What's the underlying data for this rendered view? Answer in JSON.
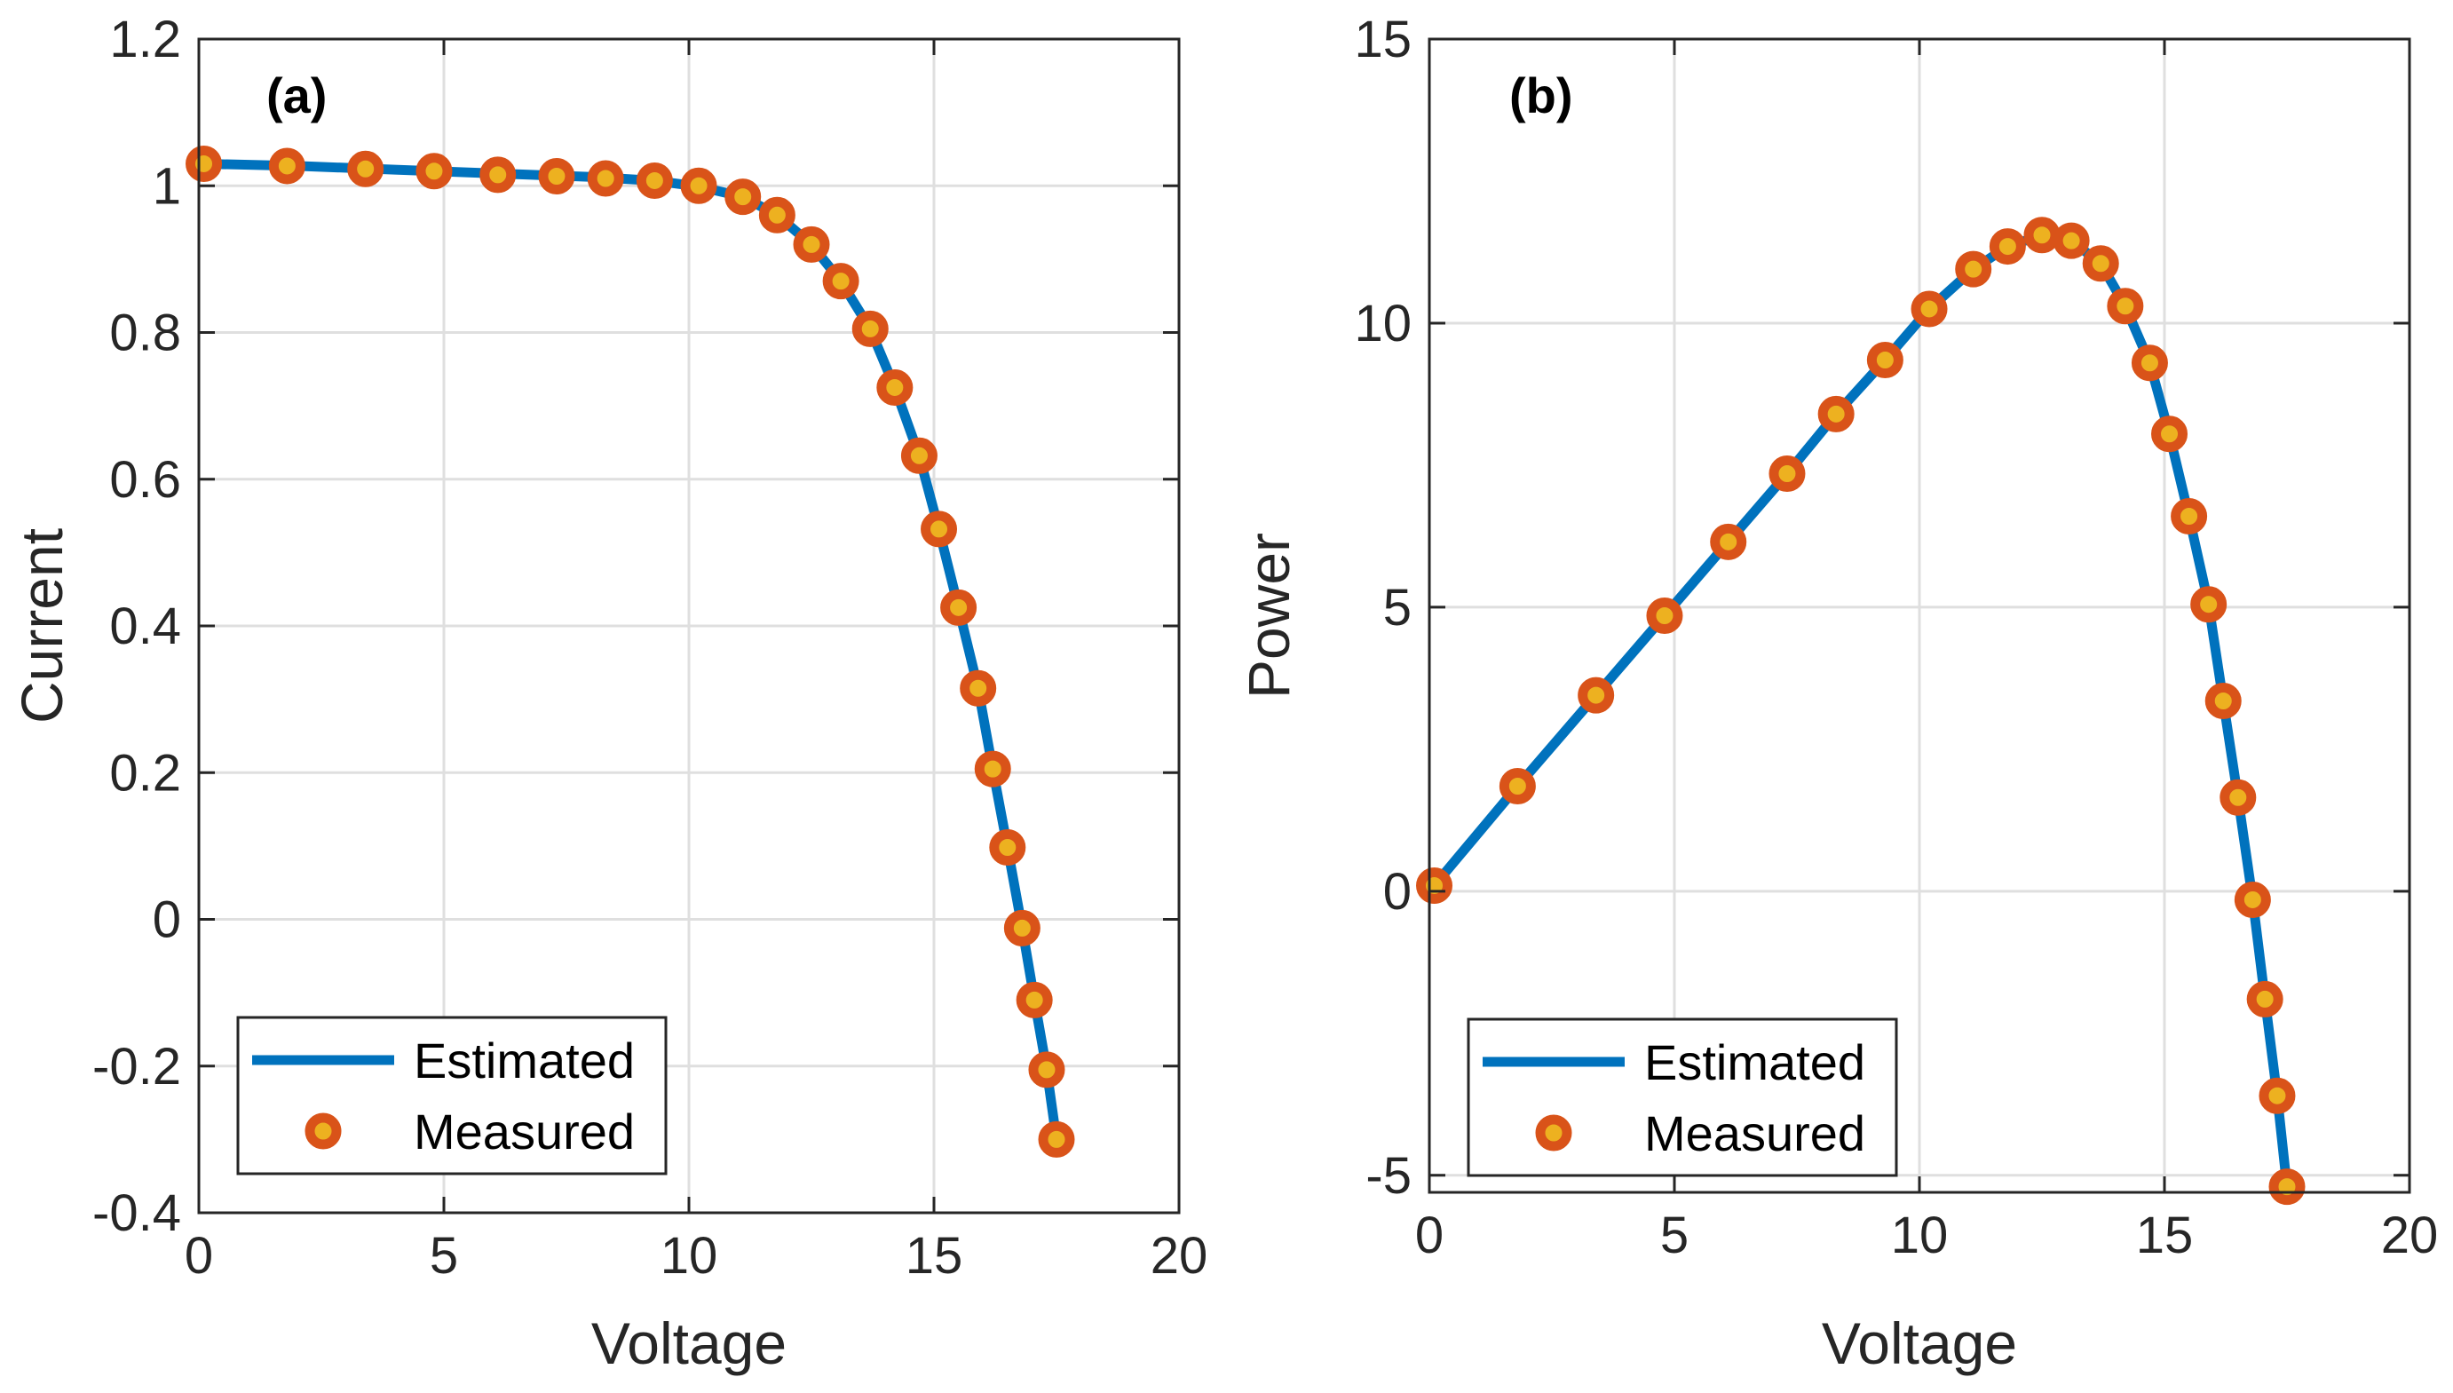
{
  "colors": {
    "estimated_line": "#0072BD",
    "marker_edge": "#D95319",
    "marker_face": "#EDB120"
  },
  "chart_data": [
    {
      "type": "line",
      "panel": "(a)",
      "xlabel": "Voltage",
      "ylabel": "Current",
      "xlim": [
        0,
        20
      ],
      "ylim": [
        -0.4,
        1.2
      ],
      "xticks": [
        0,
        5,
        10,
        15,
        20
      ],
      "xtick_labels": [
        "0",
        "5",
        "10",
        "15",
        "20"
      ],
      "yticks": [
        -0.4,
        -0.2,
        0,
        0.2,
        0.4,
        0.6,
        0.8,
        1,
        1.2
      ],
      "ytick_labels": [
        "-0.4",
        "-0.2",
        "0",
        "0.2",
        "0.4",
        "0.6",
        "0.8",
        "1",
        "1.2"
      ],
      "grid": true,
      "legend_position": "bottom-left",
      "legend": [
        "Estimated",
        "Measured"
      ],
      "series": [
        {
          "name": "Estimated",
          "style": "line",
          "x": [
            0.1,
            2,
            4,
            6,
            8,
            9.3,
            10.2,
            11.1,
            11.8,
            12.5,
            13.1,
            13.7,
            14.2,
            14.7,
            15.1,
            15.5,
            15.9,
            16.2,
            16.5,
            16.8,
            17.05,
            17.3,
            17.5
          ],
          "y": [
            1.03,
            1.027,
            1.022,
            1.017,
            1.012,
            1.007,
            0.999,
            0.985,
            0.96,
            0.92,
            0.87,
            0.805,
            0.725,
            0.632,
            0.532,
            0.425,
            0.315,
            0.205,
            0.098,
            -0.012,
            -0.11,
            -0.205,
            -0.3
          ]
        },
        {
          "name": "Measured",
          "style": "markers",
          "x": [
            0.1,
            1.8,
            3.4,
            4.8,
            6.1,
            7.3,
            8.3,
            9.3,
            10.2,
            11.1,
            11.8,
            12.5,
            13.1,
            13.7,
            14.2,
            14.7,
            15.1,
            15.5,
            15.9,
            16.2,
            16.5,
            16.8,
            17.05,
            17.3,
            17.5
          ],
          "y": [
            1.03,
            1.027,
            1.023,
            1.02,
            1.015,
            1.013,
            1.01,
            1.007,
            1.0,
            0.985,
            0.96,
            0.92,
            0.87,
            0.805,
            0.725,
            0.632,
            0.532,
            0.425,
            0.315,
            0.205,
            0.098,
            -0.012,
            -0.11,
            -0.205,
            -0.3
          ]
        }
      ]
    },
    {
      "type": "line",
      "panel": "(b)",
      "xlabel": "Voltage",
      "ylabel": "Power",
      "xlim": [
        0,
        20
      ],
      "ylim": [
        -5.3,
        15
      ],
      "xticks": [
        0,
        5,
        10,
        15,
        20
      ],
      "xtick_labels": [
        "0",
        "5",
        "10",
        "15",
        "20"
      ],
      "yticks": [
        -5,
        0,
        5,
        10,
        15
      ],
      "ytick_labels": [
        "-5",
        "0",
        "5",
        "10",
        "15"
      ],
      "grid": true,
      "legend_position": "bottom-left",
      "legend": [
        "Estimated",
        "Measured"
      ],
      "series": [
        {
          "name": "Estimated",
          "style": "line",
          "x": [
            0.1,
            1.8,
            3.4,
            4.8,
            6.1,
            7.3,
            8.3,
            9.3,
            10.2,
            11.1,
            11.8,
            12.5,
            13.1,
            13.7,
            14.2,
            14.7,
            15.1,
            15.5,
            15.9,
            16.2,
            16.5,
            16.8,
            17.05,
            17.3,
            17.5
          ],
          "y": [
            0.1,
            1.85,
            3.45,
            4.85,
            6.15,
            7.35,
            8.4,
            9.35,
            10.25,
            10.95,
            11.35,
            11.55,
            11.45,
            11.05,
            10.3,
            9.3,
            8.05,
            6.6,
            5.05,
            3.35,
            1.65,
            -0.15,
            -1.9,
            -3.6,
            -5.2
          ]
        },
        {
          "name": "Measured",
          "style": "markers",
          "x": [
            0.1,
            1.8,
            3.4,
            4.8,
            6.1,
            7.3,
            8.3,
            9.3,
            10.2,
            11.1,
            11.8,
            12.5,
            13.1,
            13.7,
            14.2,
            14.7,
            15.1,
            15.5,
            15.9,
            16.2,
            16.5,
            16.8,
            17.05,
            17.3,
            17.5
          ],
          "y": [
            0.1,
            1.85,
            3.45,
            4.85,
            6.15,
            7.35,
            8.4,
            9.35,
            10.25,
            10.95,
            11.35,
            11.55,
            11.45,
            11.05,
            10.3,
            9.3,
            8.05,
            6.6,
            5.05,
            3.35,
            1.65,
            -0.15,
            -1.9,
            -3.6,
            -5.2
          ]
        }
      ]
    }
  ]
}
